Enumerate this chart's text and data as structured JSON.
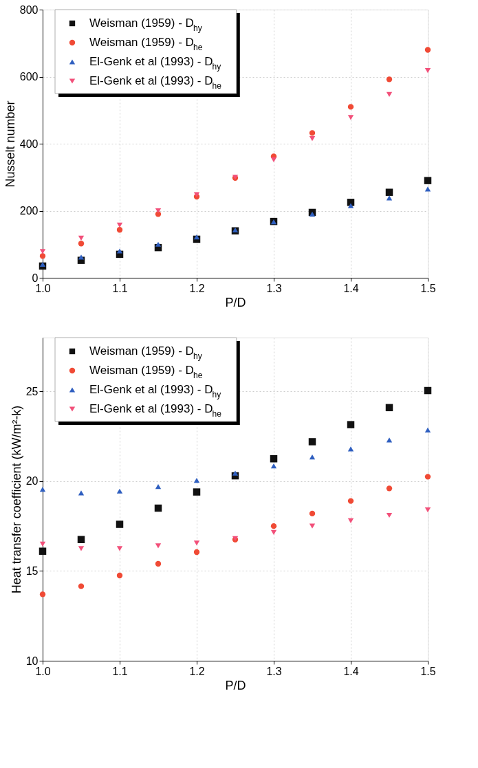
{
  "chart_data": [
    {
      "type": "scatter",
      "xlabel": "P/D",
      "ylabel": "Nusselt number",
      "x": [
        1.0,
        1.05,
        1.1,
        1.15,
        1.2,
        1.25,
        1.3,
        1.35,
        1.4,
        1.45,
        1.5
      ],
      "xlim": [
        1.0,
        1.5
      ],
      "xticks": [
        {
          "value": 1.0,
          "label": "1.0"
        },
        1.1,
        1.2,
        1.3,
        1.4,
        1.5
      ],
      "ylim": [
        0,
        800
      ],
      "yticks": [
        0,
        200,
        400,
        600,
        800
      ],
      "grid": true,
      "legend": "top left",
      "series": [
        {
          "name": "Weisman (1959) - D$_{hy}$",
          "color": "#111111",
          "marker": "square",
          "values": [
            35,
            52,
            70,
            90,
            115,
            140,
            168,
            195,
            225,
            255,
            290
          ]
        },
        {
          "name": "Weisman (1959) - D$_{he}$",
          "color": "#f04a35",
          "marker": "circle",
          "values": [
            65,
            102,
            143,
            190,
            242,
            298,
            362,
            432,
            510,
            592,
            680
          ]
        },
        {
          "name": "El-Genk et al (1993) - D$_{hy}$",
          "color": "#2f5fc0",
          "marker": "triangle",
          "values": [
            40,
            62,
            80,
            100,
            122,
            143,
            167,
            190,
            215,
            238,
            265
          ]
        },
        {
          "name": "El-Genk et al (1993) - D$_{he}$",
          "color": "#f2507a",
          "marker": "triangle-down",
          "values": [
            78,
            118,
            157,
            200,
            248,
            300,
            352,
            415,
            478,
            547,
            618
          ]
        }
      ]
    },
    {
      "type": "scatter",
      "xlabel": "P/D",
      "ylabel": "Heat transfer coefficient (kW/m²-k)",
      "x": [
        1.0,
        1.05,
        1.1,
        1.15,
        1.2,
        1.25,
        1.3,
        1.35,
        1.4,
        1.45,
        1.5
      ],
      "xlim": [
        1.0,
        1.5
      ],
      "xticks": [
        {
          "value": 1.0,
          "label": "1.0"
        },
        1.1,
        1.2,
        1.3,
        1.4,
        1.5
      ],
      "ylim": [
        10,
        28
      ],
      "yticks": [
        10,
        15,
        20,
        25
      ],
      "grid": true,
      "legend": "top left",
      "series": [
        {
          "name": "Weisman (1959) - D$_{hy}$",
          "color": "#111111",
          "marker": "square",
          "values": [
            16.1,
            16.75,
            17.6,
            18.5,
            19.4,
            20.3,
            21.25,
            22.2,
            23.15,
            24.1,
            25.05
          ]
        },
        {
          "name": "Weisman (1959) - D$_{he}$",
          "color": "#f04a35",
          "marker": "circle",
          "values": [
            13.7,
            14.15,
            14.75,
            15.4,
            16.05,
            16.75,
            17.5,
            18.2,
            18.9,
            19.6,
            20.25
          ]
        },
        {
          "name": "El-Genk et al (1993) - D$_{hy}$",
          "color": "#2f5fc0",
          "marker": "triangle",
          "values": [
            19.55,
            19.35,
            19.45,
            19.7,
            20.05,
            20.45,
            20.85,
            21.35,
            21.8,
            22.3,
            22.85
          ]
        },
        {
          "name": "El-Genk et al (1993) - D$_{he}$",
          "color": "#f2507a",
          "marker": "triangle-down",
          "values": [
            16.5,
            16.25,
            16.25,
            16.4,
            16.55,
            16.8,
            17.15,
            17.5,
            17.8,
            18.1,
            18.4
          ]
        }
      ]
    }
  ]
}
